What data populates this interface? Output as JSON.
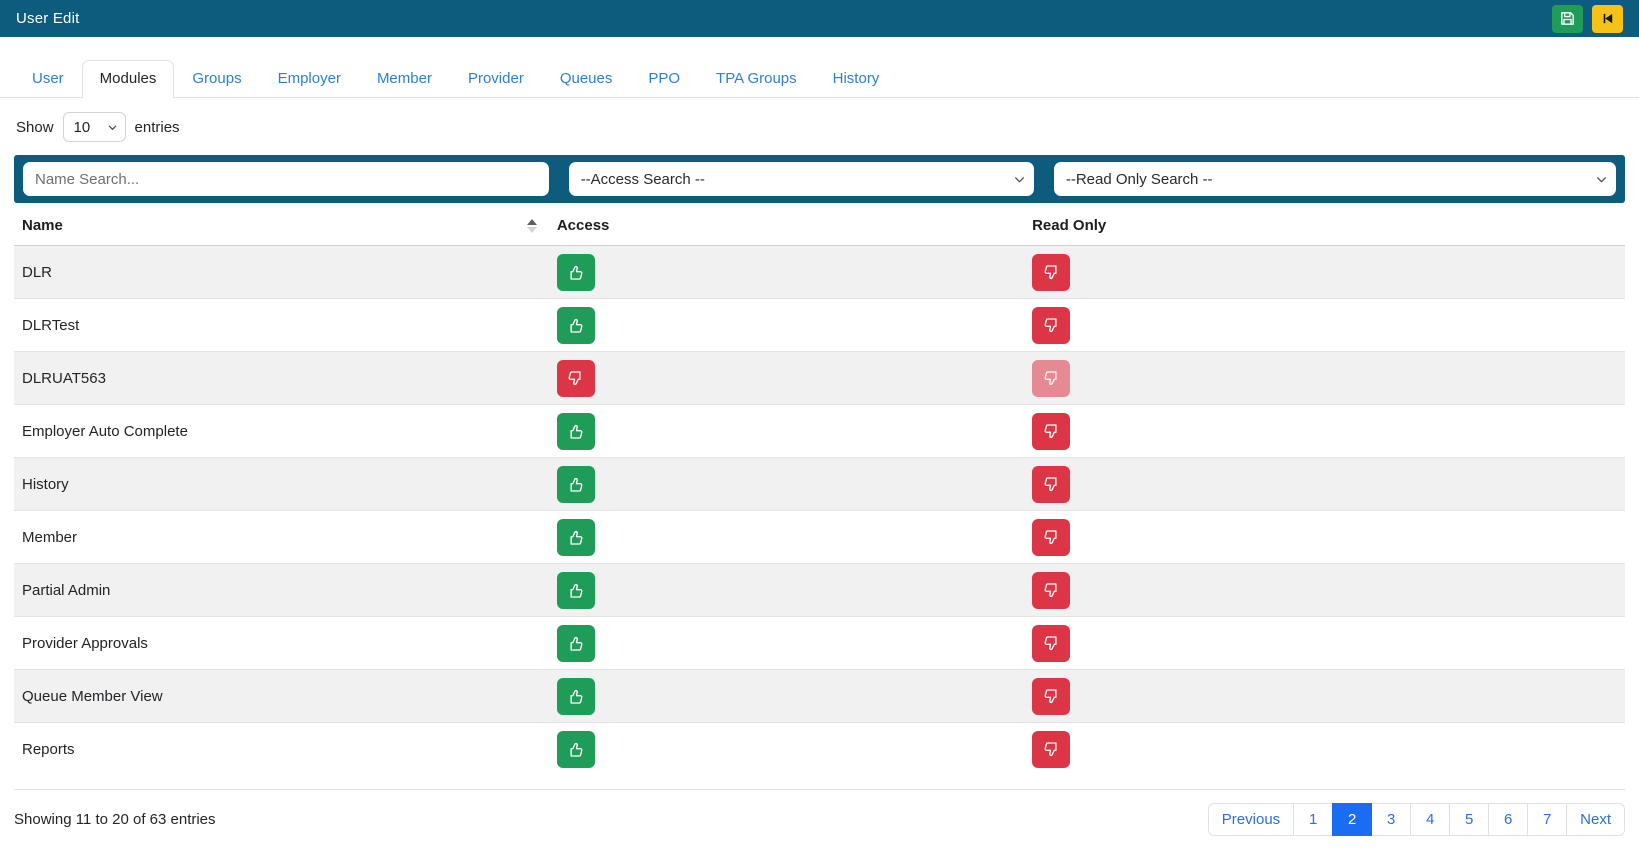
{
  "topbar": {
    "title": "User Edit"
  },
  "icons": {
    "save": "floppy-disk",
    "back": "skip-to-start",
    "sort": "sort-ascending",
    "chevron": "chevron-down",
    "thumb_up": "thumbs-up",
    "thumb_down": "thumbs-down"
  },
  "colors": {
    "topbar": "#0d5c7d",
    "green": "#1f9c58",
    "red": "#dc3545",
    "yellow": "#f5c218",
    "tab_link": "#2e7fd6",
    "pagination_active": "#1a6cf2"
  },
  "tabs": [
    {
      "label": "User",
      "active": false
    },
    {
      "label": "Modules",
      "active": true
    },
    {
      "label": "Groups",
      "active": false
    },
    {
      "label": "Employer",
      "active": false
    },
    {
      "label": "Member",
      "active": false
    },
    {
      "label": "Provider",
      "active": false
    },
    {
      "label": "Queues",
      "active": false
    },
    {
      "label": "PPO",
      "active": false
    },
    {
      "label": "TPA Groups",
      "active": false
    },
    {
      "label": "History",
      "active": false
    }
  ],
  "length_control": {
    "show": "Show",
    "entries": "entries",
    "value": "10"
  },
  "filters": {
    "name": {
      "placeholder": "Name Search..."
    },
    "access": {
      "value": "--Access Search --"
    },
    "read_only": {
      "value": "--Read Only Search --"
    }
  },
  "table": {
    "columns": [
      "Name",
      "Access",
      "Read Only"
    ],
    "rows": [
      {
        "name": "DLR",
        "access": "up",
        "read_only": "down",
        "read_only_disabled": false
      },
      {
        "name": "DLRTest",
        "access": "up",
        "read_only": "down",
        "read_only_disabled": false
      },
      {
        "name": "DLRUAT563",
        "access": "down",
        "read_only": "down",
        "read_only_disabled": true
      },
      {
        "name": "Employer Auto Complete",
        "access": "up",
        "read_only": "down",
        "read_only_disabled": false
      },
      {
        "name": "History",
        "access": "up",
        "read_only": "down",
        "read_only_disabled": false
      },
      {
        "name": "Member",
        "access": "up",
        "read_only": "down",
        "read_only_disabled": false
      },
      {
        "name": "Partial Admin",
        "access": "up",
        "read_only": "down",
        "read_only_disabled": false
      },
      {
        "name": "Provider Approvals",
        "access": "up",
        "read_only": "down",
        "read_only_disabled": false
      },
      {
        "name": "Queue Member View",
        "access": "up",
        "read_only": "down",
        "read_only_disabled": false
      },
      {
        "name": "Reports",
        "access": "up",
        "read_only": "down",
        "read_only_disabled": false
      }
    ]
  },
  "footer": {
    "info": "Showing 11 to 20 of 63 entries",
    "pages": [
      "Previous",
      "1",
      "2",
      "3",
      "4",
      "5",
      "6",
      "7",
      "Next"
    ],
    "active_page": "2"
  }
}
